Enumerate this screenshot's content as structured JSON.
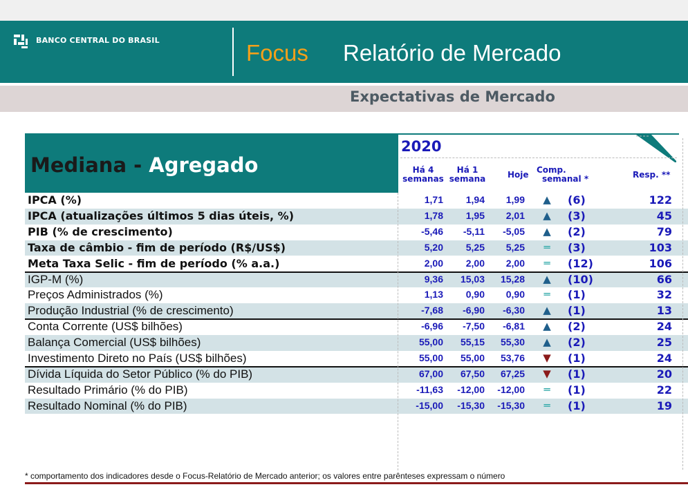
{
  "header": {
    "bank_name": "BANCO CENTRAL DO BRASIL",
    "focus": "Focus",
    "report_title": "Relatório de Mercado",
    "subtitle": "Expectativas de Mercado",
    "brand_color": "#0e7b7b",
    "accent_color": "#f5a01a"
  },
  "table": {
    "title_part1": "Mediana - ",
    "title_part2": "Agregado",
    "year": "2020",
    "columns": {
      "ha4_line1": "Há 4",
      "ha4_line2": "semanas",
      "ha1_line1": "Há 1",
      "ha1_line2": "semana",
      "hoje": "Hoje",
      "comp_line1": "Comp.",
      "comp_line2": "semanal *",
      "resp": "Resp. **"
    },
    "rows": [
      {
        "label": "IPCA (%)",
        "ha4": "1,71",
        "ha1": "1,94",
        "hoje": "1,99",
        "trend": "up",
        "count": "(6)",
        "resp": "122"
      },
      {
        "label": "IPCA (atualizações últimos 5 dias úteis, %)",
        "ha4": "1,78",
        "ha1": "1,95",
        "hoje": "2,01",
        "trend": "up",
        "count": "(3)",
        "resp": "45"
      },
      {
        "label": "PIB (% de crescimento)",
        "ha4": "-5,46",
        "ha1": "-5,11",
        "hoje": "-5,05",
        "trend": "up",
        "count": "(2)",
        "resp": "79"
      },
      {
        "label": "Taxa de câmbio - fim de período (R$/US$)",
        "ha4": "5,20",
        "ha1": "5,25",
        "hoje": "5,25",
        "trend": "equal",
        "count": "(3)",
        "resp": "103"
      },
      {
        "label": "Meta Taxa Selic - fim de período (% a.a.)",
        "ha4": "2,00",
        "ha1": "2,00",
        "hoje": "2,00",
        "trend": "equal",
        "count": "(12)",
        "resp": "106"
      },
      {
        "label": "IGP-M (%)",
        "ha4": "9,36",
        "ha1": "15,03",
        "hoje": "15,28",
        "trend": "up",
        "count": "(10)",
        "resp": "66"
      },
      {
        "label": "Preços Administrados (%)",
        "ha4": "1,13",
        "ha1": "0,90",
        "hoje": "0,90",
        "trend": "equal",
        "count": "(1)",
        "resp": "32"
      },
      {
        "label": "Produção Industrial (% de crescimento)",
        "ha4": "-7,68",
        "ha1": "-6,90",
        "hoje": "-6,30",
        "trend": "up",
        "count": "(1)",
        "resp": "13"
      },
      {
        "label": "Conta Corrente (US$ bilhões)",
        "ha4": "-6,96",
        "ha1": "-7,50",
        "hoje": "-6,81",
        "trend": "up",
        "count": "(2)",
        "resp": "24"
      },
      {
        "label": "Balança Comercial (US$ bilhões)",
        "ha4": "55,00",
        "ha1": "55,15",
        "hoje": "55,30",
        "trend": "up",
        "count": "(2)",
        "resp": "25"
      },
      {
        "label": "Investimento Direto no País (US$ bilhões)",
        "ha4": "55,00",
        "ha1": "55,00",
        "hoje": "53,76",
        "trend": "down",
        "count": "(1)",
        "resp": "24"
      },
      {
        "label": "Dívida Líquida do Setor Público (% do PIB)",
        "ha4": "67,00",
        "ha1": "67,50",
        "hoje": "67,25",
        "trend": "down",
        "count": "(1)",
        "resp": "20"
      },
      {
        "label": "Resultado Primário (% do PIB)",
        "ha4": "-11,63",
        "ha1": "-12,00",
        "hoje": "-12,00",
        "trend": "equal",
        "count": "(1)",
        "resp": "22"
      },
      {
        "label": "Resultado Nominal (% do PIB)",
        "ha4": "-15,00",
        "ha1": "-15,30",
        "hoje": "-15,30",
        "trend": "equal",
        "count": "(1)",
        "resp": "19"
      }
    ],
    "trend_colors": {
      "up": "#1f5f8b",
      "equal": "#2aa6a6",
      "down": "#8b1a1a"
    }
  },
  "footnote": "* comportamento dos indicadores desde o Focus-Relatório de Mercado anterior; os valores entre parênteses expressam o número"
}
